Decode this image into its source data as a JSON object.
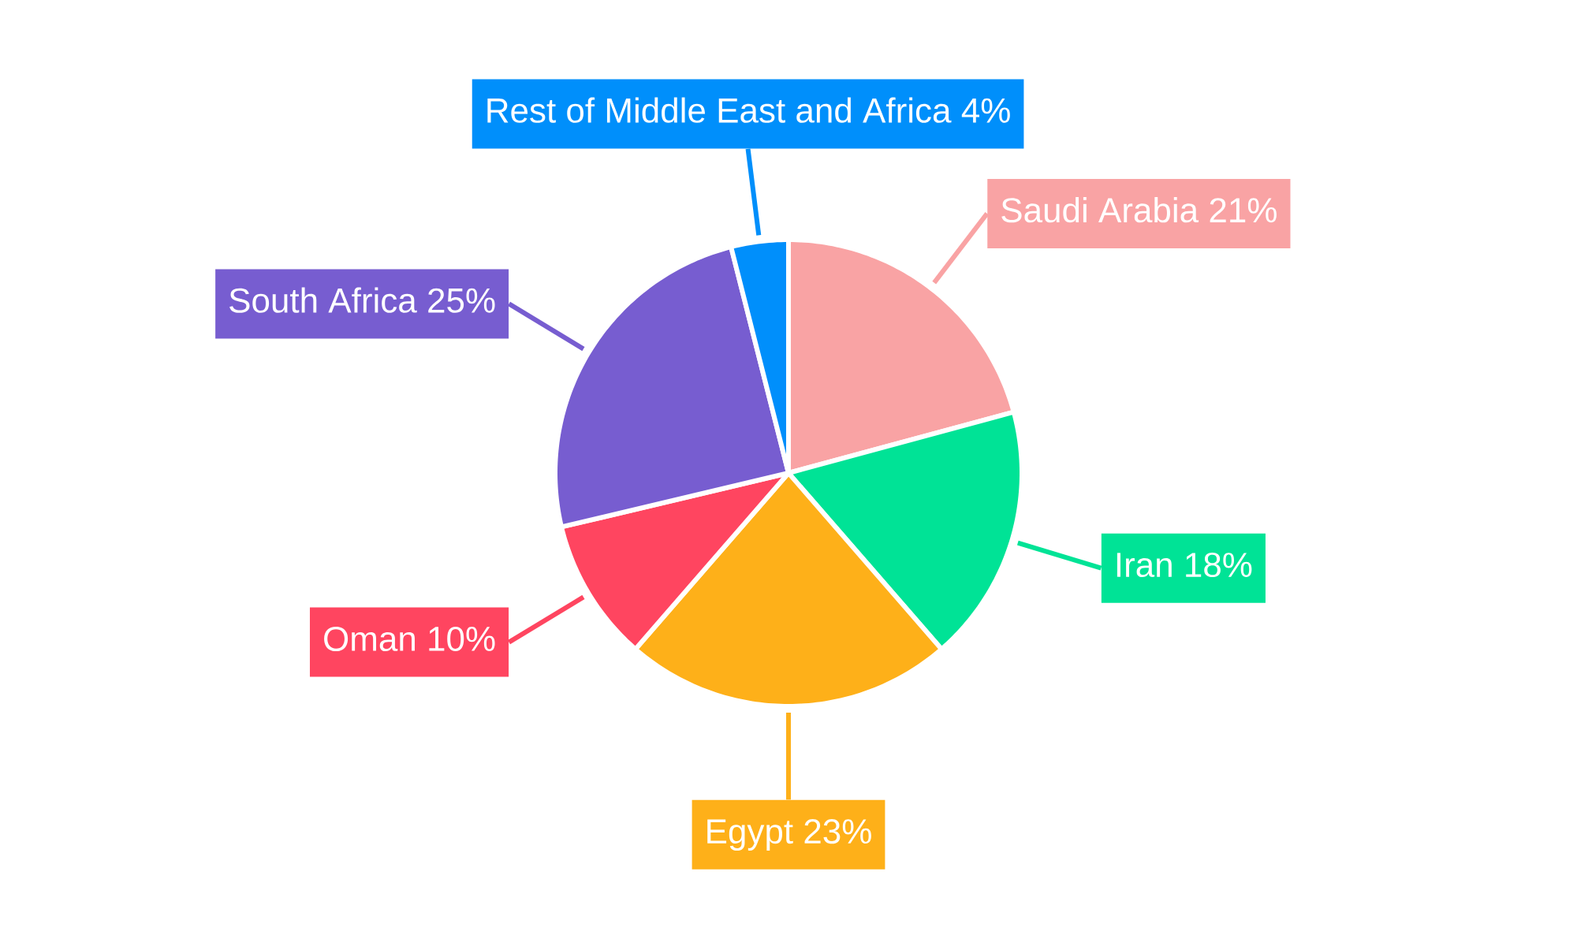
{
  "chart_data": {
    "type": "pie",
    "categories": [
      "Saudi Arabia",
      "Iran",
      "Egypt",
      "Oman",
      "South Africa",
      "Rest of Middle East and Africa"
    ],
    "values": [
      21,
      18,
      23,
      10,
      25,
      4
    ],
    "value_labels": [
      "21%",
      "18%",
      "23%",
      "10%",
      "25%",
      "4%"
    ],
    "colors": [
      "#f9a3a4",
      "#00e396",
      "#feb019",
      "#ff4560",
      "#775dd0",
      "#008ffb"
    ]
  }
}
